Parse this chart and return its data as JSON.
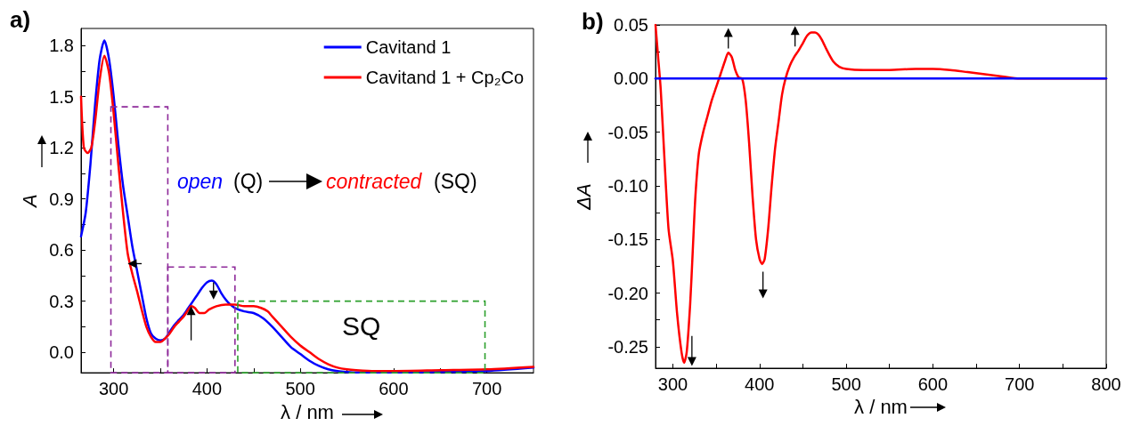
{
  "chart_data": [
    {
      "type": "line",
      "title": "a)",
      "xlabel": "λ / nm",
      "ylabel": "A",
      "xlim": [
        265,
        750
      ],
      "ylim": [
        -0.12,
        1.9
      ],
      "xticks": [
        300,
        {
          "value": 350,
          "label": null
        },
        400,
        {
          "value": 450,
          "label": null
        },
        500,
        {
          "value": 550,
          "label": null
        },
        600,
        {
          "value": 650,
          "label": null
        },
        700
      ],
      "yticks": [
        {
          "value": 0,
          "label": "0.0"
        },
        {
          "value": 0.15,
          "label": null
        },
        {
          "value": 0.3,
          "label": "0.3"
        },
        {
          "value": 0.45,
          "label": null
        },
        {
          "value": 0.6,
          "label": "0.6"
        },
        {
          "value": 0.75,
          "label": null
        },
        {
          "value": 0.9,
          "label": "0.9"
        },
        {
          "value": 1.05,
          "label": null
        },
        {
          "value": 1.2,
          "label": "1.2"
        },
        {
          "value": 1.35,
          "label": null
        },
        {
          "value": 1.5,
          "label": "1.5"
        },
        {
          "value": 1.65,
          "label": null
        },
        {
          "value": 1.8,
          "label": "1.8"
        }
      ],
      "grid": false,
      "legend": "top right",
      "marker": "none",
      "line_style": "solid",
      "annotations": [
        "open",
        "(Q)",
        "contracted",
        "(SQ)",
        "SQ"
      ],
      "series": [
        {
          "name": "Cavitand 1",
          "color": "#0000ff",
          "x": [
            265,
            270,
            275,
            280,
            285,
            290,
            295,
            300,
            305,
            310,
            315,
            320,
            325,
            330,
            335,
            340,
            345,
            350,
            355,
            360,
            365,
            370,
            375,
            380,
            385,
            390,
            395,
            400,
            405,
            410,
            415,
            420,
            425,
            430,
            440,
            450,
            460,
            470,
            480,
            490,
            500,
            510,
            520,
            530,
            540,
            550,
            560,
            580,
            600,
            650,
            700,
            750
          ],
          "values": [
            0.68,
            0.82,
            1.1,
            1.45,
            1.72,
            1.83,
            1.72,
            1.5,
            1.22,
            0.98,
            0.8,
            0.62,
            0.48,
            0.34,
            0.2,
            0.11,
            0.08,
            0.07,
            0.08,
            0.12,
            0.16,
            0.19,
            0.22,
            0.26,
            0.3,
            0.34,
            0.38,
            0.41,
            0.42,
            0.4,
            0.35,
            0.31,
            0.28,
            0.26,
            0.24,
            0.23,
            0.2,
            0.15,
            0.09,
            0.03,
            -0.01,
            -0.05,
            -0.08,
            -0.1,
            -0.11,
            -0.115,
            -0.118,
            -0.118,
            -0.118,
            -0.116,
            -0.11,
            -0.09
          ]
        },
        {
          "name": "Cavitand 1 + Cp₂Co",
          "color": "#ff0000",
          "x": [
            265,
            268,
            272,
            276,
            280,
            285,
            290,
            295,
            300,
            305,
            310,
            315,
            320,
            325,
            330,
            335,
            340,
            345,
            350,
            355,
            360,
            365,
            370,
            375,
            380,
            383,
            387,
            392,
            397,
            402,
            410,
            420,
            430,
            440,
            450,
            458,
            465,
            470,
            480,
            490,
            500,
            510,
            520,
            530,
            540,
            550,
            560,
            580,
            600,
            650,
            700,
            750
          ],
          "values": [
            1.5,
            1.2,
            1.17,
            1.2,
            1.35,
            1.6,
            1.74,
            1.64,
            1.4,
            1.1,
            0.82,
            0.58,
            0.46,
            0.36,
            0.25,
            0.15,
            0.09,
            0.06,
            0.06,
            0.08,
            0.11,
            0.15,
            0.18,
            0.21,
            0.25,
            0.27,
            0.26,
            0.23,
            0.23,
            0.25,
            0.27,
            0.28,
            0.28,
            0.27,
            0.27,
            0.26,
            0.24,
            0.21,
            0.15,
            0.09,
            0.04,
            0.0,
            -0.04,
            -0.07,
            -0.09,
            -0.1,
            -0.105,
            -0.11,
            -0.11,
            -0.105,
            -0.1,
            -0.085
          ]
        }
      ]
    },
    {
      "type": "line",
      "title": "b)",
      "xlabel": "λ / nm",
      "ylabel": "ΔA",
      "xlim": [
        280,
        800
      ],
      "ylim": [
        -0.27,
        0.05
      ],
      "xticks": [
        300,
        {
          "value": 350,
          "label": null
        },
        400,
        {
          "value": 450,
          "label": null
        },
        500,
        {
          "value": 550,
          "label": null
        },
        600,
        {
          "value": 650,
          "label": null
        },
        700,
        {
          "value": 750,
          "label": null
        },
        800
      ],
      "yticks": [
        {
          "value": -0.25,
          "label": "-0.25"
        },
        {
          "value": -0.225,
          "label": null
        },
        {
          "value": -0.2,
          "label": "-0.20"
        },
        {
          "value": -0.175,
          "label": null
        },
        {
          "value": -0.15,
          "label": "-0.15"
        },
        {
          "value": -0.125,
          "label": null
        },
        {
          "value": -0.1,
          "label": "-0.10"
        },
        {
          "value": -0.075,
          "label": null
        },
        {
          "value": -0.05,
          "label": "-0.05"
        },
        {
          "value": -0.025,
          "label": null
        },
        {
          "value": 0,
          "label": "0.00"
        },
        {
          "value": 0.025,
          "label": null
        },
        {
          "value": 0.05,
          "label": "0.05"
        }
      ],
      "grid": false,
      "marker": "none",
      "line_style": "solid",
      "series": [
        {
          "color": "#ff0000",
          "x": [
            280,
            283,
            286,
            290,
            295,
            300,
            305,
            310,
            313,
            316,
            320,
            323,
            326,
            330,
            335,
            340,
            345,
            350,
            355,
            360,
            364,
            368,
            372,
            376,
            380,
            384,
            388,
            392,
            396,
            400,
            403,
            406,
            410,
            414,
            418,
            422,
            426,
            430,
            435,
            440,
            445,
            450,
            455,
            460,
            464,
            468,
            472,
            478,
            485,
            492,
            500,
            520,
            550,
            580,
            600,
            620,
            640,
            660,
            680,
            700,
            750,
            800
          ],
          "values": [
            0.05,
            0.02,
            -0.01,
            -0.07,
            -0.14,
            -0.17,
            -0.22,
            -0.255,
            -0.265,
            -0.255,
            -0.21,
            -0.16,
            -0.11,
            -0.07,
            -0.05,
            -0.035,
            -0.02,
            -0.008,
            0.004,
            0.016,
            0.024,
            0.02,
            0.008,
            0.001,
            0.0,
            -0.02,
            -0.06,
            -0.11,
            -0.15,
            -0.168,
            -0.173,
            -0.168,
            -0.14,
            -0.1,
            -0.065,
            -0.04,
            -0.015,
            0.0,
            0.012,
            0.02,
            0.026,
            0.033,
            0.04,
            0.043,
            0.043,
            0.041,
            0.036,
            0.026,
            0.016,
            0.011,
            0.009,
            0.008,
            0.008,
            0.009,
            0.009,
            0.008,
            0.006,
            0.004,
            0.002,
            0.0,
            0.0,
            0.0
          ]
        },
        {
          "color": "#0000ff",
          "x": [
            280,
            800
          ],
          "values": [
            0,
            0
          ]
        }
      ]
    }
  ]
}
